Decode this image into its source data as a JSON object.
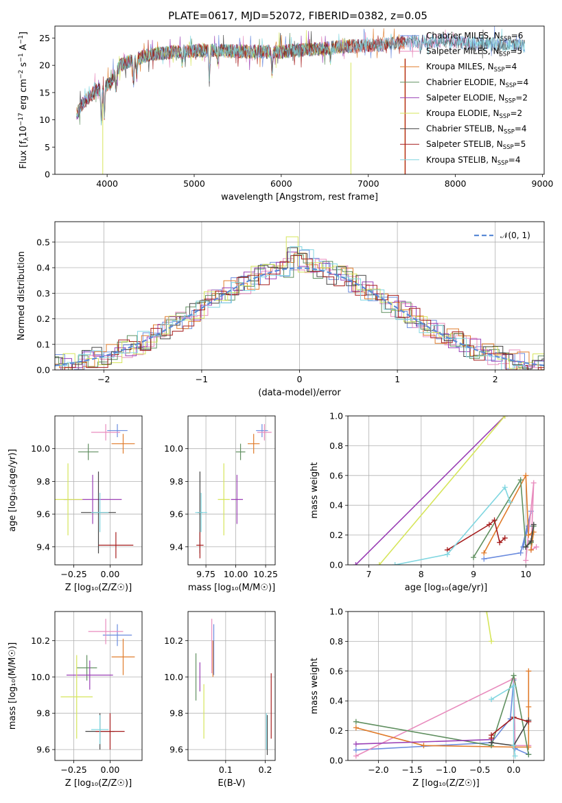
{
  "figure": {
    "title": "PLATE=0617, MJD=52072, FIBERID=0382, z=0.05"
  },
  "models": [
    {
      "name": "Chabrier MILES",
      "nssp": "6",
      "color": "#6a8bde"
    },
    {
      "name": "Salpeter MILES",
      "nssp": "5",
      "color": "#e88bbd"
    },
    {
      "name": "Kroupa MILES",
      "nssp": "4",
      "color": "#e07b2a"
    },
    {
      "name": "Chabrier ELODIE",
      "nssp": "4",
      "color": "#5f8f5f"
    },
    {
      "name": "Salpeter ELODIE",
      "nssp": "2",
      "color": "#9a3fb5"
    },
    {
      "name": "Kroupa ELODIE",
      "nssp": "2",
      "color": "#d6e55a"
    },
    {
      "name": "Chabrier STELIB",
      "nssp": "4",
      "color": "#444444"
    },
    {
      "name": "Salpeter STELIB",
      "nssp": "5",
      "color": "#a51c1c"
    },
    {
      "name": "Kroupa STELIB",
      "nssp": "4",
      "color": "#7fd6e0"
    }
  ],
  "chart_data": [
    {
      "id": "spectrum",
      "type": "line",
      "xlabel": "wavelength [Angstrom, rest frame]",
      "ylabel_parts": [
        "Flux [f",
        "λ",
        "10",
        "−17",
        " erg cm",
        "−2",
        " s",
        "−1",
        " A",
        "−1",
        "]"
      ],
      "xlim": [
        3400,
        9020
      ],
      "ylim": [
        0,
        27.2
      ],
      "xticks": [
        4000,
        5000,
        6000,
        7000,
        8000,
        9000
      ],
      "yticks": [
        0,
        5,
        10,
        15,
        20,
        25
      ],
      "legend_position": "upper-right",
      "nssp_label": "N",
      "nssp_sub": "SSP",
      "grid": false,
      "continuum": [
        [
          3650,
          11
        ],
        [
          3720,
          13
        ],
        [
          3850,
          15
        ],
        [
          3950,
          16
        ],
        [
          4050,
          17
        ],
        [
          4150,
          20
        ],
        [
          4300,
          21
        ],
        [
          4500,
          22
        ],
        [
          4800,
          22.5
        ],
        [
          5200,
          22.8
        ],
        [
          5600,
          22.5
        ],
        [
          6000,
          22.5
        ],
        [
          6400,
          23
        ],
        [
          6800,
          23.5
        ],
        [
          7200,
          23.8
        ],
        [
          7400,
          24.2
        ],
        [
          7800,
          24.5
        ],
        [
          8200,
          24
        ],
        [
          8600,
          23.8
        ],
        [
          8800,
          23.5
        ]
      ],
      "absorption_features": [
        {
          "wavelength": 3934,
          "depth": 6
        },
        {
          "wavelength": 3969,
          "depth": 5
        },
        {
          "wavelength": 4102,
          "depth": 3
        },
        {
          "wavelength": 4304,
          "depth": 4
        },
        {
          "wavelength": 4340,
          "depth": 3
        },
        {
          "wavelength": 4861,
          "depth": 2
        },
        {
          "wavelength": 5175,
          "depth": 5
        },
        {
          "wavelength": 5270,
          "depth": 2
        },
        {
          "wavelength": 5895,
          "depth": 4
        },
        {
          "wavelength": 6563,
          "depth": 2
        },
        {
          "wavelength": 7600,
          "depth": 2
        }
      ],
      "spikes": [
        {
          "color": "#d6e55a",
          "x": 3950,
          "bottom": 0
        },
        {
          "color": "#d6e55a",
          "x": 6800,
          "bottom": 0
        },
        {
          "color": "#e07b2a",
          "x": 7420,
          "bottom": 0
        },
        {
          "color": "#a51c1c",
          "x": 7425,
          "bottom": 0
        }
      ],
      "spectrum_ranges": [
        {
          "model": 0,
          "x0": 3650,
          "x1": 8800
        },
        {
          "model": 1,
          "x0": 3650,
          "x1": 8200
        },
        {
          "model": 2,
          "x0": 3650,
          "x1": 7420
        },
        {
          "model": 3,
          "x0": 3650,
          "x1": 6800
        },
        {
          "model": 4,
          "x0": 3650,
          "x1": 6800
        },
        {
          "model": 5,
          "x0": 3900,
          "x1": 6800
        },
        {
          "model": 6,
          "x0": 3650,
          "x1": 8800
        },
        {
          "model": 7,
          "x0": 3650,
          "x1": 7420
        },
        {
          "model": 8,
          "x0": 3650,
          "x1": 8800
        }
      ]
    },
    {
      "id": "residuals",
      "type": "line",
      "xlabel": "(data-model)/error",
      "ylabel": "Normed distribution",
      "xlim": [
        -2.5,
        2.5
      ],
      "ylim": [
        0,
        0.58
      ],
      "xticks": [
        -2,
        -1,
        0,
        1,
        2
      ],
      "yticks": [
        0.0,
        0.1,
        0.2,
        0.3,
        0.4,
        0.5
      ],
      "grid": true,
      "legend": "𝒩(0, 1)",
      "legend_position": "upper-right",
      "reference_color": "#5b8ad6",
      "bin_width": 0.1
    },
    {
      "id": "age_vs_Z",
      "type": "scatter",
      "xlabel": "Z [log₁₀(Z/Z☉)]",
      "ylabel": "age  [log₁₀(age/yr)]",
      "xlim": [
        -0.38,
        0.22
      ],
      "ylim": [
        9.29,
        10.2
      ],
      "xticks": [
        -0.25,
        0.0
      ],
      "xticklabels": [
        "−0.25",
        "0.00"
      ],
      "yticks": [
        9.4,
        9.6,
        9.8,
        10.0
      ],
      "grid": true,
      "points": [
        {
          "model": 0,
          "x": 0.05,
          "xerr": 0.07,
          "y": 10.11,
          "yerr": 0.04
        },
        {
          "model": 1,
          "x": -0.03,
          "xerr": 0.1,
          "y": 10.1,
          "yerr": 0.05
        },
        {
          "model": 2,
          "x": 0.09,
          "xerr": 0.08,
          "y": 10.03,
          "yerr": 0.06
        },
        {
          "model": 3,
          "x": -0.15,
          "xerr": 0.07,
          "y": 9.98,
          "yerr": 0.05
        },
        {
          "model": 4,
          "x": -0.12,
          "xerr": 0.2,
          "y": 9.69,
          "yerr": 0.15
        },
        {
          "model": 5,
          "x": -0.29,
          "xerr": 0.1,
          "y": 9.69,
          "yerr": 0.22
        },
        {
          "model": 6,
          "x": -0.08,
          "xerr": 0.12,
          "y": 9.61,
          "yerr": 0.25
        },
        {
          "model": 7,
          "x": 0.04,
          "xerr": 0.12,
          "y": 9.41,
          "yerr": 0.08
        },
        {
          "model": 8,
          "x": -0.07,
          "xerr": 0.06,
          "y": 9.61,
          "yerr": 0.12
        }
      ]
    },
    {
      "id": "age_vs_mass",
      "type": "scatter",
      "xlabel": "mass [log₁₀(M/M☉)]",
      "ylabel": "",
      "xlim": [
        9.6,
        10.33
      ],
      "ylim": [
        9.29,
        10.2
      ],
      "xticks": [
        9.75,
        10.0,
        10.25
      ],
      "xticklabels": [
        "9.75",
        "10.00",
        "10.25"
      ],
      "yticks": [
        9.4,
        9.6,
        9.8,
        10.0
      ],
      "grid": true,
      "points": [
        {
          "model": 0,
          "x": 10.22,
          "xerr": 0.05,
          "y": 10.11,
          "yerr": 0.04
        },
        {
          "model": 1,
          "x": 10.24,
          "xerr": 0.06,
          "y": 10.1,
          "yerr": 0.05
        },
        {
          "model": 2,
          "x": 10.15,
          "xerr": 0.05,
          "y": 10.03,
          "yerr": 0.06
        },
        {
          "model": 3,
          "x": 10.04,
          "xerr": 0.04,
          "y": 9.98,
          "yerr": 0.05
        },
        {
          "model": 4,
          "x": 10.01,
          "xerr": 0.05,
          "y": 9.69,
          "yerr": 0.15
        },
        {
          "model": 5,
          "x": 9.9,
          "xerr": 0.05,
          "y": 9.69,
          "yerr": 0.22
        },
        {
          "model": 6,
          "x": 9.7,
          "xerr": 0.02,
          "y": 9.61,
          "yerr": 0.25
        },
        {
          "model": 7,
          "x": 9.7,
          "xerr": 0.03,
          "y": 9.41,
          "yerr": 0.08
        },
        {
          "model": 8,
          "x": 9.71,
          "xerr": 0.05,
          "y": 9.61,
          "yerr": 0.12
        }
      ]
    },
    {
      "id": "mass_weight_vs_age",
      "type": "line",
      "xlabel": "age  [log₁₀(age/yr)]",
      "ylabel": "mass weight",
      "xlim": [
        6.6,
        10.35
      ],
      "ylim": [
        0,
        1.0
      ],
      "xticks": [
        7,
        8,
        9,
        10
      ],
      "yticks": [
        0.0,
        0.2,
        0.4,
        0.6,
        0.8,
        1.0
      ],
      "grid": true,
      "series": [
        {
          "model": 0,
          "points": [
            [
              9.2,
              0.04
            ],
            [
              9.9,
              0.08
            ],
            [
              10.1,
              0.36
            ],
            [
              10.05,
              0.26
            ],
            [
              9.95,
              0.12
            ]
          ]
        },
        {
          "model": 1,
          "points": [
            [
              10.0,
              0.03
            ],
            [
              10.15,
              0.55
            ],
            [
              10.1,
              0.1
            ],
            [
              10.2,
              0.12
            ]
          ]
        },
        {
          "model": 2,
          "points": [
            [
              9.2,
              0.08
            ],
            [
              10.0,
              0.6
            ],
            [
              10.05,
              0.2
            ],
            [
              10.15,
              0.22
            ],
            [
              10.1,
              0.1
            ]
          ]
        },
        {
          "model": 3,
          "points": [
            [
              9.0,
              0.05
            ],
            [
              9.9,
              0.57
            ],
            [
              10.0,
              0.12
            ],
            [
              10.1,
              0.15
            ],
            [
              10.15,
              0.26
            ]
          ]
        },
        {
          "model": 4,
          "points": [
            [
              6.75,
              0.0
            ],
            [
              9.6,
              1.0
            ]
          ]
        },
        {
          "model": 5,
          "points": [
            [
              7.2,
              0.0
            ],
            [
              9.6,
              1.0
            ]
          ]
        },
        {
          "model": 6,
          "points": [
            [
              10.0,
              0.12
            ],
            [
              10.1,
              0.16
            ],
            [
              10.15,
              0.27
            ]
          ]
        },
        {
          "model": 7,
          "points": [
            [
              8.5,
              0.1
            ],
            [
              9.3,
              0.27
            ],
            [
              9.4,
              0.3
            ],
            [
              9.5,
              0.15
            ],
            [
              9.6,
              0.18
            ]
          ]
        },
        {
          "model": 8,
          "points": [
            [
              7.5,
              0.0
            ],
            [
              8.5,
              0.07
            ],
            [
              9.6,
              0.52
            ],
            [
              9.7,
              0.42
            ]
          ]
        }
      ]
    },
    {
      "id": "mass_vs_Z",
      "type": "scatter",
      "xlabel": "Z [log₁₀(Z/Z☉)]",
      "ylabel": "mass [log₁₀(M/M☉)]",
      "xlim": [
        -0.38,
        0.22
      ],
      "ylim": [
        9.54,
        10.36
      ],
      "xticks": [
        -0.25,
        0.0
      ],
      "xticklabels": [
        "−0.25",
        "0.00"
      ],
      "yticks": [
        9.6,
        9.8,
        10.0,
        10.2
      ],
      "grid": true,
      "points": [
        {
          "model": 0,
          "x": 0.05,
          "xerr": 0.1,
          "y": 10.23,
          "yerr": 0.06
        },
        {
          "model": 1,
          "x": -0.03,
          "xerr": 0.12,
          "y": 10.25,
          "yerr": 0.07
        },
        {
          "model": 2,
          "x": 0.09,
          "xerr": 0.08,
          "y": 10.11,
          "yerr": 0.1
        },
        {
          "model": 3,
          "x": -0.16,
          "xerr": 0.07,
          "y": 10.05,
          "yerr": 0.07
        },
        {
          "model": 4,
          "x": -0.14,
          "xerr": 0.16,
          "y": 10.01,
          "yerr": 0.08
        },
        {
          "model": 5,
          "x": -0.23,
          "xerr": 0.11,
          "y": 9.89,
          "yerr": 0.23
        },
        {
          "model": 6,
          "x": -0.07,
          "xerr": 0.1,
          "y": 9.7,
          "yerr": 0.1
        },
        {
          "model": 7,
          "x": 0.0,
          "xerr": 0.1,
          "y": 9.7,
          "yerr": 0.1
        },
        {
          "model": 8,
          "x": -0.07,
          "xerr": 0.06,
          "y": 9.71,
          "yerr": 0.08
        }
      ]
    },
    {
      "id": "mass_vs_EBV",
      "type": "scatter",
      "xlabel": "E(B-V)",
      "ylabel": "",
      "xlim": [
        0.005,
        0.225
      ],
      "ylim": [
        9.54,
        10.36
      ],
      "xticks": [
        0.1,
        0.2
      ],
      "xticklabels": [
        "0.1",
        "0.2"
      ],
      "yticks": [
        9.6,
        9.8,
        10.0,
        10.2
      ],
      "grid": true,
      "points": [
        {
          "model": 0,
          "x": 0.07,
          "xerr": 0,
          "y": 10.15,
          "yerr": 0.14
        },
        {
          "model": 1,
          "x": 0.065,
          "xerr": 0,
          "y": 10.17,
          "yerr": 0.15
        },
        {
          "model": 2,
          "x": 0.068,
          "xerr": 0,
          "y": 10.1,
          "yerr": 0.1
        },
        {
          "model": 3,
          "x": 0.025,
          "xerr": 0,
          "y": 10.0,
          "yerr": 0.13
        },
        {
          "model": 4,
          "x": 0.035,
          "xerr": 0,
          "y": 10.0,
          "yerr": 0.08
        },
        {
          "model": 5,
          "x": 0.045,
          "xerr": 0,
          "y": 9.81,
          "yerr": 0.15
        },
        {
          "model": 6,
          "x": 0.205,
          "xerr": 0,
          "y": 9.68,
          "yerr": 0.11
        },
        {
          "model": 7,
          "x": 0.215,
          "xerr": 0,
          "y": 9.84,
          "yerr": 0.18
        },
        {
          "model": 8,
          "x": 0.203,
          "xerr": 0,
          "y": 9.7,
          "yerr": 0.1
        }
      ]
    },
    {
      "id": "mass_weight_vs_Z",
      "type": "line",
      "xlabel": "Z [log₁₀(Z/Z☉)]",
      "ylabel": "mass weight",
      "xlim": [
        -2.45,
        0.45
      ],
      "ylim": [
        0,
        1.0
      ],
      "xticks": [
        -2.0,
        -1.5,
        -1.0,
        -0.5,
        0.0
      ],
      "xticklabels": [
        "−2.0",
        "−1.5",
        "−1.0",
        "−0.5",
        "0.0"
      ],
      "yticks": [
        0.0,
        0.2,
        0.4,
        0.6,
        0.8,
        1.0
      ],
      "grid": true,
      "series": [
        {
          "model": 0,
          "points": [
            [
              -2.33,
              0.07
            ],
            [
              -0.33,
              0.12
            ],
            [
              -0.05,
              0.28
            ],
            [
              0.0,
              0.54
            ],
            [
              0.02,
              0.08
            ],
            [
              0.22,
              0.04
            ]
          ]
        },
        {
          "model": 1,
          "points": [
            [
              -2.33,
              0.03
            ],
            [
              0.0,
              0.55
            ],
            [
              0.02,
              0.1
            ],
            [
              0.22,
              0.1
            ]
          ]
        },
        {
          "model": 2,
          "points": [
            [
              -2.33,
              0.22
            ],
            [
              -1.33,
              0.1
            ],
            [
              0.0,
              0.09
            ],
            [
              0.22,
              0.09
            ],
            [
              0.22,
              0.6
            ],
            [
              0.22,
              0.36
            ]
          ]
        },
        {
          "model": 3,
          "points": [
            [
              -2.33,
              0.26
            ],
            [
              -0.33,
              0.1
            ],
            [
              0.0,
              0.57
            ],
            [
              0.22,
              0.04
            ]
          ]
        },
        {
          "model": 4,
          "points": [
            [
              -2.33,
              0.11
            ],
            [
              -0.33,
              0.14
            ]
          ]
        },
        {
          "model": 5,
          "points": [
            [
              -0.4,
              1.0
            ],
            [
              -0.33,
              0.8
            ]
          ]
        },
        {
          "model": 6,
          "points": [
            [
              -0.33,
              0.12
            ],
            [
              0.0,
              0.1
            ],
            [
              0.22,
              0.27
            ]
          ]
        },
        {
          "model": 7,
          "points": [
            [
              -0.33,
              0.15
            ],
            [
              -0.33,
              0.17
            ],
            [
              0.0,
              0.29
            ],
            [
              0.22,
              0.26
            ]
          ]
        },
        {
          "model": 8,
          "points": [
            [
              -0.33,
              0.41
            ],
            [
              0.0,
              0.5
            ],
            [
              0.0,
              0.1
            ],
            [
              0.02,
              0.03
            ]
          ]
        }
      ]
    }
  ]
}
